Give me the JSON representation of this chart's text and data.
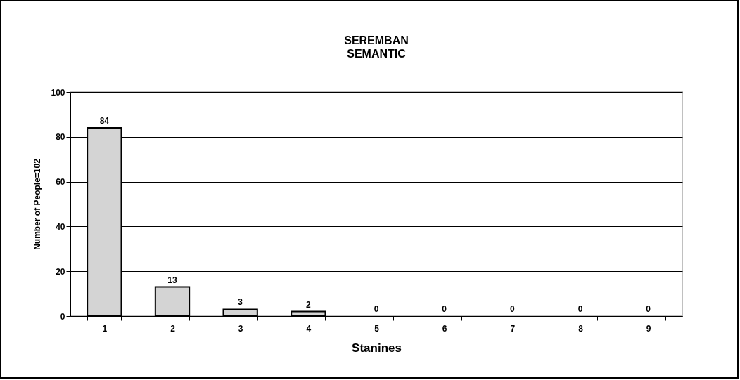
{
  "chart_data": {
    "type": "bar",
    "title": "SEREMBAN",
    "subtitle": "SEMANTIC",
    "xlabel": "Stanines",
    "ylabel": "Number of People=102",
    "categories": [
      "1",
      "2",
      "3",
      "4",
      "5",
      "6",
      "7",
      "8",
      "9"
    ],
    "values": [
      84,
      13,
      3,
      2,
      0,
      0,
      0,
      0,
      0
    ],
    "color": "#d4d4d4",
    "ylim": [
      0,
      100
    ],
    "yticks": [
      0,
      20,
      40,
      60,
      80,
      100
    ],
    "grid": "y",
    "data_labels": true
  }
}
